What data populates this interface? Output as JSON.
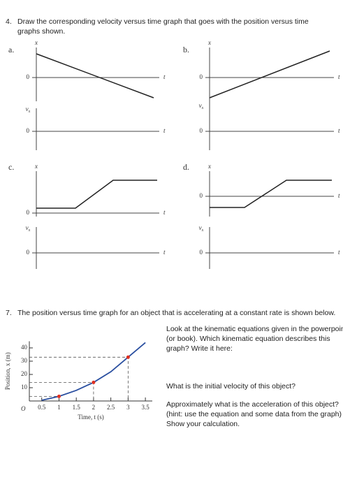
{
  "q4": {
    "number": "4.",
    "text": "Draw the corresponding velocity versus time graph that goes with the position versus time graphs shown."
  },
  "graphs": [
    {
      "label": "a.",
      "position": {
        "axis_label": "x",
        "zero": "0",
        "time": "t"
      },
      "velocity": {
        "axis_label": {
          "main": "v",
          "sub": "x"
        },
        "zero": "0",
        "time": "t"
      }
    },
    {
      "label": "b.",
      "position": {
        "axis_label": "x",
        "zero": "0",
        "time": "t"
      },
      "velocity": {
        "axis_label": {
          "main": "v",
          "sub": "x"
        },
        "zero": "0",
        "time": "t"
      }
    },
    {
      "label": "c.",
      "position": {
        "axis_label": "x",
        "zero": "0",
        "time": "t"
      },
      "velocity": {
        "axis_label": {
          "main": "v",
          "sub": "x"
        },
        "zero": "0",
        "time": "t"
      }
    },
    {
      "label": "d.",
      "position": {
        "axis_label": "x",
        "zero": "0",
        "time": "t"
      },
      "velocity": {
        "axis_label": {
          "main": "v",
          "sub": "x"
        },
        "zero": "0",
        "time": "t"
      }
    }
  ],
  "q7": {
    "number": "7.",
    "text": "The position versus time graph for an object that is accelerating at a constant rate is shown below.",
    "questions": [
      "Look at the kinematic equations given in the powerpoint (or book). Which kinematic equation describes this graph? Write it here:",
      "What is the initial velocity of this object?",
      "Approximately what is the acceleration of this object? (hint: use the equation and some data from the graph) Show your calculation."
    ]
  },
  "chart_data": {
    "type": "line",
    "x_label": "Time, t (s)",
    "y_label": "Position, x (m)",
    "origin_label": "O",
    "x": [
      0.5,
      1,
      1.5,
      2,
      2.5,
      3,
      3.5
    ],
    "values": [
      0.5,
      3.5,
      8,
      14,
      22,
      33,
      44
    ],
    "color": "#2a4fa0",
    "points": {
      "x": [
        1,
        2,
        3
      ],
      "values": [
        3.5,
        14,
        33
      ],
      "color": "#e03020"
    },
    "xlim": [
      0,
      3.7
    ],
    "ylim": [
      0,
      45
    ],
    "xticks": [
      0.5,
      1,
      1.5,
      2,
      2.5,
      3,
      3.5
    ],
    "yticks": [
      10,
      20,
      30,
      40
    ],
    "grid": false
  }
}
